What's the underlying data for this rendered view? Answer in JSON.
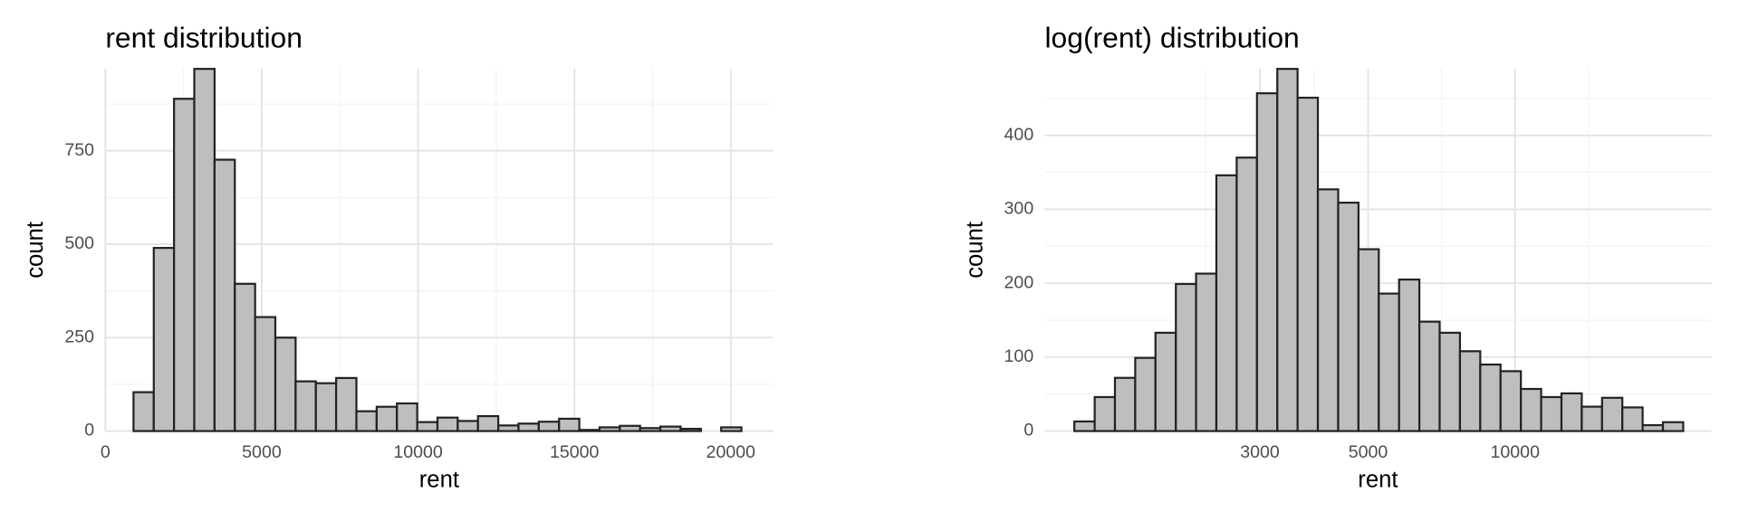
{
  "chart_data": [
    {
      "type": "histogram",
      "title": "rent distribution",
      "x_label": "rent",
      "y_label": "count",
      "bins": [
        900,
        1548,
        2196,
        2844,
        3492,
        4140,
        4788,
        5436,
        6084,
        6732,
        7380,
        8028,
        8676,
        9324,
        9972,
        10620,
        11268,
        11916,
        12564,
        13212,
        13860,
        14508,
        15156,
        15804,
        16452,
        17100,
        17748,
        18396,
        19044,
        19692,
        20340
      ],
      "values": [
        104,
        490,
        889,
        969,
        726,
        394,
        305,
        250,
        133,
        128,
        142,
        53,
        65,
        74,
        24,
        36,
        27,
        40,
        15,
        20,
        25,
        33,
        3,
        10,
        14,
        8,
        12,
        6,
        0,
        10
      ],
      "color": "#bebebe",
      "xlim": [
        0,
        21350
      ],
      "ylim": [
        0,
        969
      ],
      "xticks": [
        0,
        5000,
        10000,
        15000,
        20000
      ],
      "yticks": [
        0,
        250,
        500,
        750
      ],
      "grid": true,
      "log_x": false
    },
    {
      "type": "histogram",
      "title": "log(rent) distribution",
      "x_label": "rent",
      "y_label": "count",
      "bins": [
        1250,
        1376,
        1514,
        1666,
        1833,
        2018,
        2220,
        2443,
        2689,
        2959,
        3257,
        3584,
        3944,
        4341,
        4777,
        5257,
        5786,
        6367,
        7007,
        7711,
        8486,
        9339,
        10278,
        11311,
        12448,
        13699,
        15076,
        16591,
        18258,
        20093,
        22113
      ],
      "values": [
        13,
        46,
        72,
        99,
        133,
        199,
        213,
        346,
        370,
        457,
        490,
        451,
        327,
        309,
        246,
        186,
        205,
        148,
        133,
        108,
        90,
        81,
        57,
        46,
        51,
        33,
        45,
        32,
        8,
        12
      ],
      "color": "#bebebe",
      "xlim": [
        1087,
        25240
      ],
      "ylim": [
        0,
        490
      ],
      "xticks": [
        3000,
        5000,
        10000
      ],
      "yticks": [
        0,
        100,
        200,
        300,
        400
      ],
      "grid": true,
      "log_x": true
    }
  ]
}
